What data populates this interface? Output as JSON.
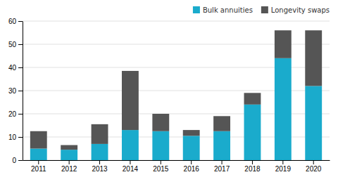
{
  "chart_data": {
    "type": "bar",
    "stacked": true,
    "categories": [
      "2011",
      "2012",
      "2013",
      "2014",
      "2015",
      "2016",
      "2017",
      "2018",
      "2019",
      "2020"
    ],
    "series": [
      {
        "name": "Bulk annuities",
        "color": "#1aabcc",
        "values": [
          5,
          4.5,
          7,
          13,
          12.5,
          10.5,
          12.5,
          24,
          44,
          32
        ]
      },
      {
        "name": "Longevity swaps",
        "color": "#555555",
        "values": [
          7.5,
          2,
          8.5,
          25.5,
          7.5,
          2.5,
          6.5,
          5,
          12,
          24
        ]
      }
    ],
    "ylim": [
      0,
      60
    ],
    "yticks": [
      0,
      10,
      20,
      30,
      40,
      50,
      60
    ],
    "grid": true,
    "legend": "upper-right"
  }
}
